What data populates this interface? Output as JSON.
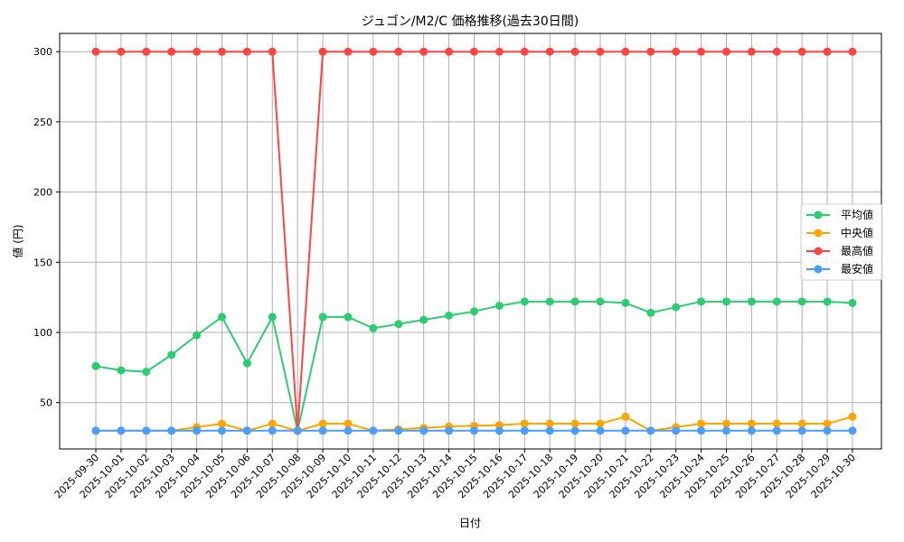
{
  "chart_data": {
    "type": "line",
    "title": "ジュゴン/M2/C 価格推移(過去30日間)",
    "xlabel": "日付",
    "ylabel": "値 (円)",
    "ylim": [
      17,
      313
    ],
    "yticks": [
      50,
      100,
      150,
      200,
      250,
      300
    ],
    "grid": true,
    "legend_position": "center-right",
    "x": [
      "2025-09-30",
      "2025-10-01",
      "2025-10-02",
      "2025-10-03",
      "2025-10-04",
      "2025-10-05",
      "2025-10-06",
      "2025-10-07",
      "2025-10-08",
      "2025-10-09",
      "2025-10-10",
      "2025-10-11",
      "2025-10-12",
      "2025-10-13",
      "2025-10-14",
      "2025-10-15",
      "2025-10-16",
      "2025-10-17",
      "2025-10-18",
      "2025-10-19",
      "2025-10-20",
      "2025-10-21",
      "2025-10-22",
      "2025-10-23",
      "2025-10-24",
      "2025-10-25",
      "2025-10-26",
      "2025-10-27",
      "2025-10-28",
      "2025-10-29",
      "2025-10-30"
    ],
    "series": [
      {
        "name": "平均値",
        "color": "#2ecc71",
        "values": [
          76,
          73,
          72,
          84,
          98,
          111,
          78,
          111,
          30,
          111,
          111,
          103,
          106,
          109,
          112,
          115,
          119,
          122,
          122,
          122,
          122,
          121,
          114,
          118,
          122,
          122,
          122,
          122,
          122,
          122,
          121
        ]
      },
      {
        "name": "中央値",
        "color": "#ffa500",
        "values": [
          30,
          30,
          30,
          30,
          32.5,
          35,
          30,
          35,
          30,
          35,
          35,
          30,
          31,
          32,
          33,
          33.5,
          34,
          35,
          35,
          35,
          35,
          40,
          30,
          32.5,
          35,
          35,
          35,
          35,
          35,
          35,
          40
        ]
      },
      {
        "name": "最高値",
        "color": "#ff4444",
        "values": [
          300,
          300,
          300,
          300,
          300,
          300,
          300,
          300,
          30,
          300,
          300,
          300,
          300,
          300,
          300,
          300,
          300,
          300,
          300,
          300,
          300,
          300,
          300,
          300,
          300,
          300,
          300,
          300,
          300,
          300,
          300
        ]
      },
      {
        "name": "最安値",
        "color": "#4a9eff",
        "values": [
          30,
          30,
          30,
          30,
          30,
          30,
          30,
          30,
          30,
          30,
          30,
          30,
          30,
          30,
          30,
          30,
          30,
          30,
          30,
          30,
          30,
          30,
          30,
          30,
          30,
          30,
          30,
          30,
          30,
          30,
          30
        ]
      }
    ]
  }
}
